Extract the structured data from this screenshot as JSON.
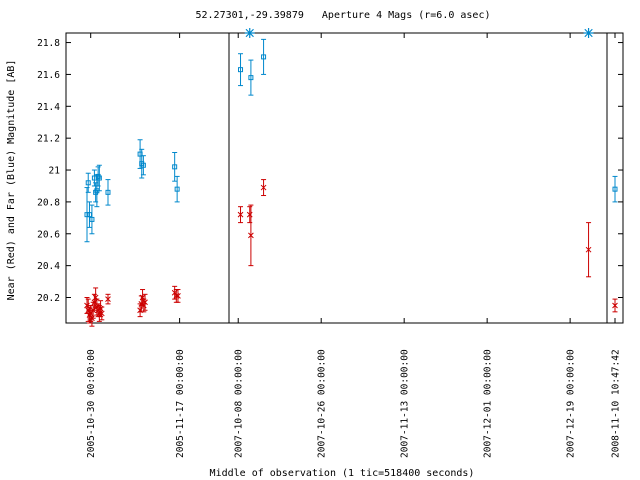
{
  "chart_data": {
    "type": "scatter",
    "title": "52.27301,-29.39879   Aperture 4 Mags (r=6.0 asec)",
    "xlabel": "Middle of observation (1 tic=518400 seconds)",
    "ylabel": "Near (Red) and Far (Blue) Magnitude [AB]",
    "y_inverted": true,
    "ylim": [
      21.86,
      20.04
    ],
    "yticks": [
      20.2,
      20.4,
      20.6,
      20.8,
      21,
      21.2,
      21.4,
      21.6,
      21.8
    ],
    "ytick_labels": [
      "20.2",
      "20.4",
      "20.6",
      "20.8",
      "21",
      "21.2",
      "21.4",
      "21.6",
      "21.8"
    ],
    "panels": [
      {
        "x_start": "2005-10-25",
        "x_end": "2005-11-27",
        "ticks": [
          "2005-10-30 00:00:00",
          "2005-11-17 00:00:00"
        ]
      },
      {
        "x_start": "2007-10-06",
        "x_end": "2007-12-27",
        "ticks": [
          "2007-10-08 00:00:00",
          "2007-10-26 00:00:00",
          "2007-11-13 00:00:00",
          "2007-12-01 00:00:00",
          "2007-12-19 00:00:00"
        ]
      },
      {
        "x_start": "2008-11-10",
        "x_end": "2008-11-10",
        "ticks": [
          "2008-11-10 10:47:42"
        ]
      }
    ],
    "series": [
      {
        "color": "#cc0000",
        "marker": "x",
        "points": [
          {
            "x": "2005-10-29 06:00",
            "y": 20.15,
            "err": 0.05
          },
          {
            "x": "2005-10-29 12:00",
            "y": 20.12,
            "err": 0.07
          },
          {
            "x": "2005-10-29 18:00",
            "y": 20.09,
            "err": 0.05
          },
          {
            "x": "2005-10-30 00:00",
            "y": 20.1,
            "err": 0.05
          },
          {
            "x": "2005-10-30 06:00",
            "y": 20.07,
            "err": 0.05
          },
          {
            "x": "2005-10-30 12:00",
            "y": 20.12,
            "err": 0.05
          },
          {
            "x": "2005-10-30 18:00",
            "y": 20.17,
            "err": 0.05
          },
          {
            "x": "2005-10-31 00:00",
            "y": 20.2,
            "err": 0.06
          },
          {
            "x": "2005-10-31 06:00",
            "y": 20.14,
            "err": 0.05
          },
          {
            "x": "2005-10-31 12:00",
            "y": 20.12,
            "err": 0.04
          },
          {
            "x": "2005-10-31 18:00",
            "y": 20.1,
            "err": 0.05
          },
          {
            "x": "2005-11-01 00:00",
            "y": 20.13,
            "err": 0.05
          },
          {
            "x": "2005-11-01 06:00",
            "y": 20.1,
            "err": 0.04
          },
          {
            "x": "2005-11-02 12:00",
            "y": 20.19,
            "err": 0.03
          },
          {
            "x": "2005-11-09 00:00",
            "y": 20.12,
            "err": 0.04
          },
          {
            "x": "2005-11-09 06:00",
            "y": 20.16,
            "err": 0.05
          },
          {
            "x": "2005-11-09 12:00",
            "y": 20.2,
            "err": 0.05
          },
          {
            "x": "2005-11-09 18:00",
            "y": 20.15,
            "err": 0.04
          },
          {
            "x": "2005-11-10 00:00",
            "y": 20.17,
            "err": 0.05
          },
          {
            "x": "2005-11-16 00:00",
            "y": 20.23,
            "err": 0.04
          },
          {
            "x": "2005-11-16 08:00",
            "y": 20.21,
            "err": 0.04
          },
          {
            "x": "2005-11-16 16:00",
            "y": 20.21,
            "err": 0.04
          },
          {
            "x": "2007-10-08 12:00",
            "y": 20.72,
            "err": 0.05
          },
          {
            "x": "2007-10-10 12:00",
            "y": 20.72,
            "err": 0.05
          },
          {
            "x": "2007-10-10 18:00",
            "y": 20.59,
            "err": 0.19
          },
          {
            "x": "2007-10-13 12:00",
            "y": 20.89,
            "err": 0.05
          },
          {
            "x": "2007-12-23 00:00",
            "y": 20.5,
            "err": 0.17
          },
          {
            "x": "2008-11-10 10:47:42",
            "y": 20.15,
            "err": 0.04
          }
        ]
      },
      {
        "color": "#0088cc",
        "marker": "square",
        "points": [
          {
            "x": "2005-10-29 06:00",
            "y": 20.72,
            "err": 0.17
          },
          {
            "x": "2005-10-29 12:00",
            "y": 20.92,
            "err": 0.06
          },
          {
            "x": "2005-10-29 18:00",
            "y": 20.72,
            "err": 0.08
          },
          {
            "x": "2005-10-30 06:00",
            "y": 20.69,
            "err": 0.09
          },
          {
            "x": "2005-10-30 18:00",
            "y": 20.95,
            "err": 0.05
          },
          {
            "x": "2005-10-31 00:00",
            "y": 20.86,
            "err": 0.06
          },
          {
            "x": "2005-10-31 06:00",
            "y": 20.87,
            "err": 0.1
          },
          {
            "x": "2005-10-31 12:00",
            "y": 20.96,
            "err": 0.06
          },
          {
            "x": "2005-10-31 18:00",
            "y": 20.95,
            "err": 0.08
          },
          {
            "x": "2005-11-02 12:00",
            "y": 20.86,
            "err": 0.08
          },
          {
            "x": "2005-11-09 00:00",
            "y": 21.1,
            "err": 0.09
          },
          {
            "x": "2005-11-09 08:00",
            "y": 21.04,
            "err": 0.09
          },
          {
            "x": "2005-11-09 16:00",
            "y": 21.03,
            "err": 0.06
          },
          {
            "x": "2005-11-16 00:00",
            "y": 21.02,
            "err": 0.09
          },
          {
            "x": "2005-11-16 12:00",
            "y": 20.88,
            "err": 0.08
          },
          {
            "x": "2007-10-08 12:00",
            "y": 21.63,
            "err": 0.1
          },
          {
            "x": "2007-10-10 18:00",
            "y": 21.58,
            "err": 0.11
          },
          {
            "x": "2007-10-13 12:00",
            "y": 21.71,
            "err": 0.11
          },
          {
            "x": "2008-11-10 10:47:42",
            "y": 20.88,
            "err": 0.08
          }
        ]
      }
    ],
    "markers": [
      {
        "x": "2007-10-10 12:00",
        "y": 21.86,
        "symbol": "asterisk",
        "color": "#0088cc"
      },
      {
        "x": "2007-12-23 00:00",
        "y": 21.86,
        "symbol": "asterisk",
        "color": "#0088cc"
      }
    ]
  }
}
